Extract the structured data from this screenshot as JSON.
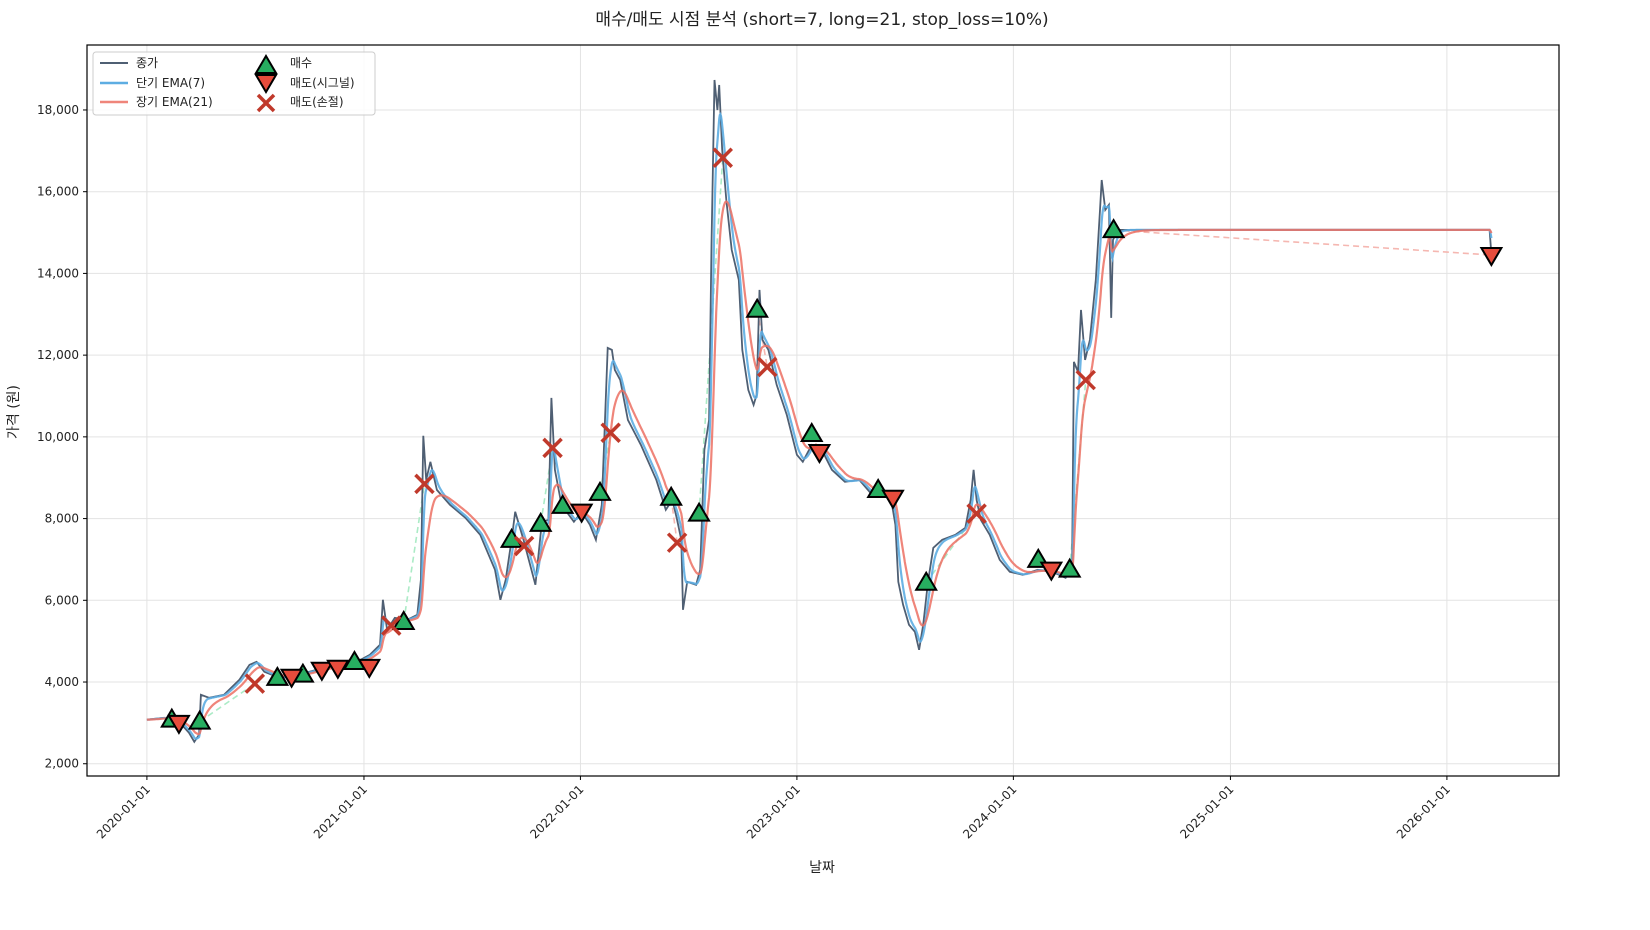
{
  "chart_data": {
    "type": "line",
    "title": "매수/매도 시점 분석 (short=7, long=21, stop_loss=10%)",
    "xlabel": "날짜",
    "ylabel": "가격 (원)",
    "xlim": [
      "2019-09-22",
      "2026-07-09"
    ],
    "ylim": [
      1700,
      19590
    ],
    "xticks": [
      "2020-01-01",
      "2021-01-01",
      "2022-01-01",
      "2023-01-01",
      "2024-01-01",
      "2025-01-01",
      "2026-01-01"
    ],
    "yticks": [
      2000,
      4000,
      6000,
      8000,
      10000,
      12000,
      14000,
      16000,
      18000
    ],
    "ytick_labels": [
      "2,000",
      "4,000",
      "6,000",
      "8,000",
      "10,000",
      "12,000",
      "14,000",
      "16,000",
      "18,000"
    ],
    "grid": true,
    "legend_placement": "top-left",
    "legend": {
      "close": "종가",
      "short_ema": "단기 EMA(7)",
      "long_ema": "장기 EMA(21)",
      "buy": "매수",
      "sell_signal": "매도(시그널)",
      "sell_stop": "매도(손절)"
    },
    "colors": {
      "close": "#4f5f73",
      "short_ema": "#5dade2",
      "long_ema": "#ec7063",
      "buy": "#27ae60",
      "sell_signal": "#e74c3c",
      "sell_stop": "#c0392b",
      "trade_win": "#abebc6",
      "trade_loss": "#f5b7b1"
    },
    "ema_spans": {
      "short": 7,
      "long": 21
    },
    "close": [
      [
        "2020-01-01",
        3080
      ],
      [
        "2020-01-30",
        3125
      ],
      [
        "2020-02-24",
        3028
      ],
      [
        "2020-03-12",
        2758
      ],
      [
        "2020-03-21",
        2538
      ],
      [
        "2020-03-29",
        2710
      ],
      [
        "2020-04-01",
        3688
      ],
      [
        "2020-04-15",
        3615
      ],
      [
        "2020-05-10",
        3688
      ],
      [
        "2020-06-05",
        4055
      ],
      [
        "2020-06-22",
        4422
      ],
      [
        "2020-07-04",
        4495
      ],
      [
        "2020-07-17",
        4250
      ],
      [
        "2020-08-12",
        4104
      ],
      [
        "2020-09-06",
        4153
      ],
      [
        "2020-10-01",
        4250
      ],
      [
        "2020-10-27",
        4349
      ],
      [
        "2020-11-21",
        4422
      ],
      [
        "2020-12-17",
        4471
      ],
      [
        "2021-01-11",
        4667
      ],
      [
        "2021-01-28",
        4911
      ],
      [
        "2021-02-02",
        6012
      ],
      [
        "2021-02-09",
        5278
      ],
      [
        "2021-02-22",
        5572
      ],
      [
        "2021-03-15",
        5523
      ],
      [
        "2021-04-01",
        5645
      ],
      [
        "2021-04-07",
        6502
      ],
      [
        "2021-04-11",
        10025
      ],
      [
        "2021-04-16",
        8948
      ],
      [
        "2021-04-23",
        9389
      ],
      [
        "2021-05-04",
        8703
      ],
      [
        "2021-05-26",
        8336
      ],
      [
        "2021-06-21",
        8018
      ],
      [
        "2021-07-16",
        7602
      ],
      [
        "2021-08-10",
        6746
      ],
      [
        "2021-08-19",
        6012
      ],
      [
        "2021-08-28",
        6502
      ],
      [
        "2021-09-07",
        7480
      ],
      [
        "2021-09-13",
        8165
      ],
      [
        "2021-09-27",
        7480
      ],
      [
        "2021-10-17",
        6379
      ],
      [
        "2021-10-28",
        7921
      ],
      [
        "2021-11-08",
        7970
      ],
      [
        "2021-11-13",
        10954
      ],
      [
        "2021-11-19",
        9193
      ],
      [
        "2021-11-30",
        8336
      ],
      [
        "2021-12-21",
        7921
      ],
      [
        "2022-01-03",
        8165
      ],
      [
        "2022-01-17",
        7847
      ],
      [
        "2022-01-27",
        7480
      ],
      [
        "2022-02-06",
        8336
      ],
      [
        "2022-02-16",
        12177
      ],
      [
        "2022-02-23",
        12128
      ],
      [
        "2022-02-28",
        11640
      ],
      [
        "2022-03-09",
        11394
      ],
      [
        "2022-03-22",
        10416
      ],
      [
        "2022-04-13",
        9804
      ],
      [
        "2022-05-09",
        8948
      ],
      [
        "2022-05-25",
        8214
      ],
      [
        "2022-06-05",
        8459
      ],
      [
        "2022-06-13",
        7970
      ],
      [
        "2022-06-20",
        7480
      ],
      [
        "2022-06-23",
        5768
      ],
      [
        "2022-06-30",
        6453
      ],
      [
        "2022-07-15",
        6379
      ],
      [
        "2022-07-22",
        6746
      ],
      [
        "2022-07-29",
        9682
      ],
      [
        "2022-08-06",
        10416
      ],
      [
        "2022-08-10",
        14697
      ],
      [
        "2022-08-15",
        18734
      ],
      [
        "2022-08-20",
        18000
      ],
      [
        "2022-08-23",
        18612
      ],
      [
        "2022-08-28",
        17021
      ],
      [
        "2022-09-04",
        15798
      ],
      [
        "2022-09-13",
        14575
      ],
      [
        "2022-09-25",
        13841
      ],
      [
        "2022-10-01",
        12128
      ],
      [
        "2022-10-11",
        11150
      ],
      [
        "2022-10-20",
        10783
      ],
      [
        "2022-10-25",
        11027
      ],
      [
        "2022-10-30",
        13596
      ],
      [
        "2022-11-04",
        12373
      ],
      [
        "2022-11-14",
        12128
      ],
      [
        "2022-11-28",
        11272
      ],
      [
        "2022-12-15",
        10538
      ],
      [
        "2023-01-01",
        9560
      ],
      [
        "2023-01-11",
        9389
      ],
      [
        "2023-01-26",
        9804
      ],
      [
        "2023-02-12",
        9682
      ],
      [
        "2023-03-01",
        9193
      ],
      [
        "2023-03-23",
        8899
      ],
      [
        "2023-04-16",
        8948
      ],
      [
        "2023-05-08",
        8581
      ],
      [
        "2023-05-23",
        8703
      ],
      [
        "2023-06-09",
        8459
      ],
      [
        "2023-06-16",
        7847
      ],
      [
        "2023-06-21",
        6453
      ],
      [
        "2023-06-29",
        5890
      ],
      [
        "2023-07-09",
        5401
      ],
      [
        "2023-07-19",
        5229
      ],
      [
        "2023-07-26",
        4789
      ],
      [
        "2023-08-02",
        5401
      ],
      [
        "2023-08-10",
        6453
      ],
      [
        "2023-08-19",
        7284
      ],
      [
        "2023-09-03",
        7480
      ],
      [
        "2023-09-25",
        7602
      ],
      [
        "2023-10-12",
        7774
      ],
      [
        "2023-10-21",
        8459
      ],
      [
        "2023-10-26",
        9193
      ],
      [
        "2023-10-31",
        8459
      ],
      [
        "2023-11-07",
        7970
      ],
      [
        "2023-11-22",
        7602
      ],
      [
        "2023-12-09",
        6991
      ],
      [
        "2023-12-26",
        6697
      ],
      [
        "2024-01-17",
        6624
      ],
      [
        "2024-02-11",
        6746
      ],
      [
        "2024-03-07",
        6697
      ],
      [
        "2024-03-29",
        6551
      ],
      [
        "2024-04-09",
        6869
      ],
      [
        "2024-04-12",
        11835
      ],
      [
        "2024-04-19",
        11590
      ],
      [
        "2024-04-24",
        13107
      ],
      [
        "2024-05-01",
        11884
      ],
      [
        "2024-05-09",
        12373
      ],
      [
        "2024-05-19",
        13841
      ],
      [
        "2024-05-26",
        15554
      ],
      [
        "2024-05-29",
        16287
      ],
      [
        "2024-06-04",
        15554
      ],
      [
        "2024-06-10",
        15676
      ],
      [
        "2024-06-14",
        12912
      ],
      [
        "2024-06-17",
        14820
      ],
      [
        "2024-06-25",
        15064
      ],
      [
        "2026-03-14",
        15064
      ],
      [
        "2026-03-17",
        14453
      ]
    ],
    "buy": [
      [
        "2020-02-12",
        3080
      ],
      [
        "2020-03-30",
        3030
      ],
      [
        "2020-08-08",
        4100
      ],
      [
        "2020-09-20",
        4180
      ],
      [
        "2020-12-16",
        4490
      ],
      [
        "2021-03-09",
        5470
      ],
      [
        "2021-09-07",
        7480
      ],
      [
        "2021-10-26",
        7870
      ],
      [
        "2021-12-02",
        8310
      ],
      [
        "2022-02-03",
        8630
      ],
      [
        "2022-06-03",
        8510
      ],
      [
        "2022-07-20",
        8120
      ],
      [
        "2022-10-26",
        13110
      ],
      [
        "2023-01-26",
        10070
      ],
      [
        "2023-05-18",
        8700
      ],
      [
        "2023-08-07",
        6430
      ],
      [
        "2024-02-12",
        6990
      ],
      [
        "2024-04-05",
        6750
      ],
      [
        "2024-06-18",
        15060
      ]
    ],
    "sell_signal": [
      [
        "2020-02-24",
        3000
      ],
      [
        "2020-09-01",
        4130
      ],
      [
        "2020-10-22",
        4300
      ],
      [
        "2020-11-18",
        4350
      ],
      [
        "2021-01-10",
        4370
      ],
      [
        "2022-01-03",
        8170
      ],
      [
        "2023-02-08",
        9630
      ],
      [
        "2023-06-12",
        8510
      ],
      [
        "2024-03-05",
        6750
      ],
      [
        "2026-03-17",
        14450
      ]
    ],
    "sell_stop": [
      [
        "2020-07-01",
        3960
      ],
      [
        "2021-02-16",
        5380
      ],
      [
        "2021-04-13",
        8850
      ],
      [
        "2021-09-28",
        7330
      ],
      [
        "2021-11-15",
        9730
      ],
      [
        "2022-02-21",
        10100
      ],
      [
        "2022-06-13",
        7410
      ],
      [
        "2022-08-29",
        16830
      ],
      [
        "2022-11-12",
        11710
      ],
      [
        "2023-10-31",
        8120
      ],
      [
        "2024-05-02",
        11390
      ]
    ]
  }
}
